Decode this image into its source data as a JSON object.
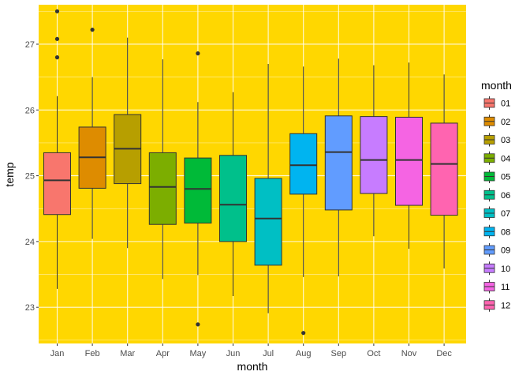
{
  "chart_data": {
    "type": "box",
    "xlabel": "month",
    "ylabel": "temp",
    "ylim": [
      22.45,
      27.6
    ],
    "yticks": [
      23,
      24,
      25,
      26,
      27
    ],
    "panel_background": "#FFD700",
    "grid": true,
    "legend_title": "month",
    "legend_position": "right",
    "categories": [
      "Jan",
      "Feb",
      "Mar",
      "Apr",
      "May",
      "Jun",
      "Jul",
      "Aug",
      "Sep",
      "Oct",
      "Nov",
      "Dec"
    ],
    "series": [
      {
        "legend": "01",
        "color": "#F8766D",
        "whisker_low": 23.28,
        "q1": 24.41,
        "median": 24.93,
        "q3": 25.35,
        "whisker_high": 26.21,
        "outliers": [
          26.8,
          27.08,
          27.5
        ]
      },
      {
        "legend": "02",
        "color": "#DE8C00",
        "whisker_low": 24.04,
        "q1": 24.81,
        "median": 25.28,
        "q3": 25.74,
        "whisker_high": 26.5,
        "outliers": [
          27.22
        ]
      },
      {
        "legend": "03",
        "color": "#B79F00",
        "whisker_low": 23.9,
        "q1": 24.88,
        "median": 25.41,
        "q3": 25.93,
        "whisker_high": 27.1,
        "outliers": []
      },
      {
        "legend": "04",
        "color": "#7CAE00",
        "whisker_low": 23.43,
        "q1": 24.26,
        "median": 24.83,
        "q3": 25.35,
        "whisker_high": 26.77,
        "outliers": []
      },
      {
        "legend": "05",
        "color": "#00BA38",
        "whisker_low": 23.49,
        "q1": 24.28,
        "median": 24.8,
        "q3": 25.27,
        "whisker_high": 26.12,
        "outliers": [
          22.74,
          26.86
        ]
      },
      {
        "legend": "06",
        "color": "#00C08B",
        "whisker_low": 23.17,
        "q1": 24.0,
        "median": 24.56,
        "q3": 25.31,
        "whisker_high": 26.27,
        "outliers": []
      },
      {
        "legend": "07",
        "color": "#00BFC4",
        "whisker_low": 22.91,
        "q1": 23.64,
        "median": 24.35,
        "q3": 24.96,
        "whisker_high": 26.7,
        "outliers": []
      },
      {
        "legend": "08",
        "color": "#00B4F0",
        "whisker_low": 23.46,
        "q1": 24.72,
        "median": 25.16,
        "q3": 25.64,
        "whisker_high": 26.66,
        "outliers": [
          22.61
        ]
      },
      {
        "legend": "09",
        "color": "#619CFF",
        "whisker_low": 23.47,
        "q1": 24.48,
        "median": 25.36,
        "q3": 25.91,
        "whisker_high": 26.78,
        "outliers": []
      },
      {
        "legend": "10",
        "color": "#C77CFF",
        "whisker_low": 24.08,
        "q1": 24.73,
        "median": 25.24,
        "q3": 25.9,
        "whisker_high": 26.68,
        "outliers": []
      },
      {
        "legend": "11",
        "color": "#F564E3",
        "whisker_low": 23.89,
        "q1": 24.55,
        "median": 25.24,
        "q3": 25.89,
        "whisker_high": 26.72,
        "outliers": []
      },
      {
        "legend": "12",
        "color": "#FF64B0",
        "whisker_low": 23.59,
        "q1": 24.4,
        "median": 25.18,
        "q3": 25.8,
        "whisker_high": 26.54,
        "outliers": []
      }
    ]
  }
}
